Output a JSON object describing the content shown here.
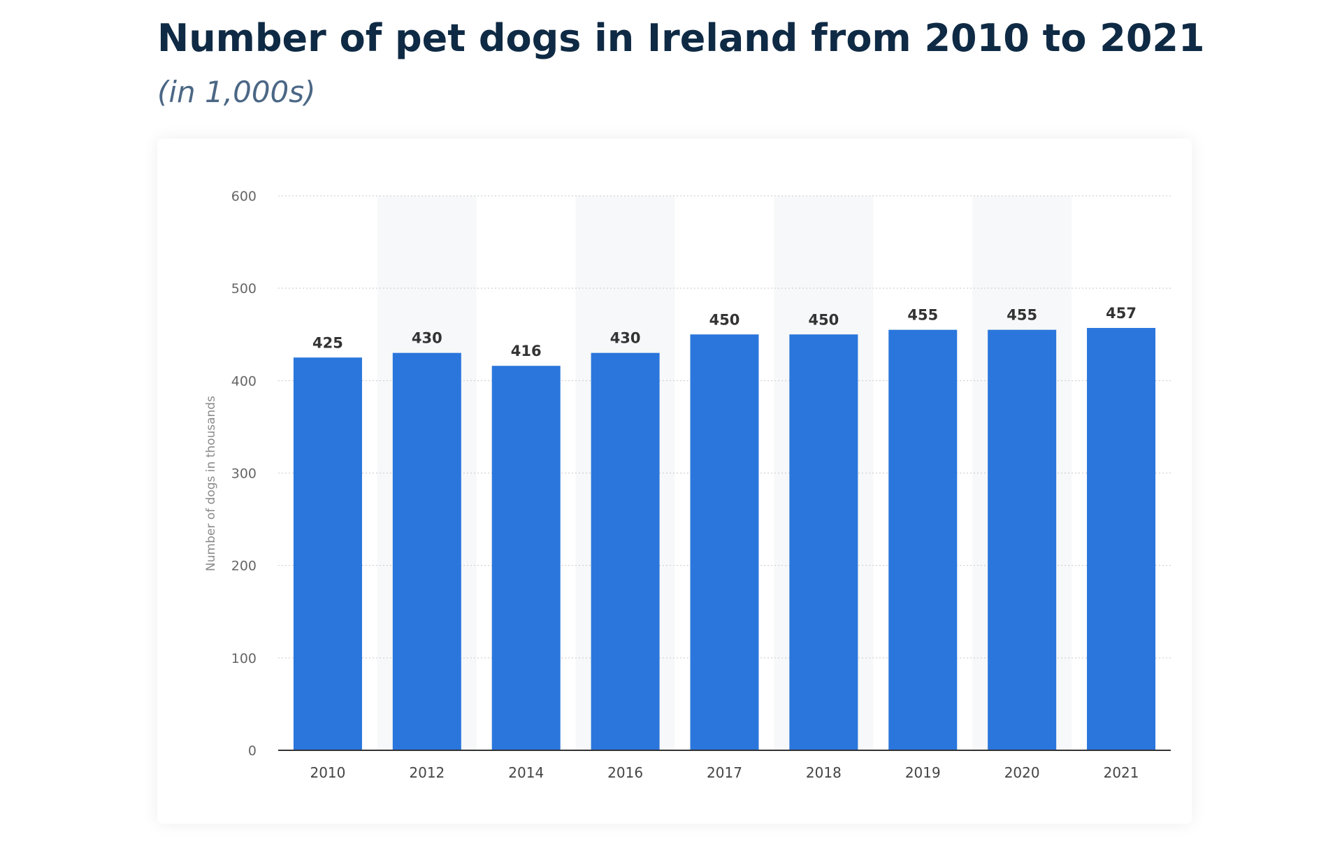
{
  "title": "Number of pet dogs in Ireland from 2010 to 2021",
  "subtitle": "(in 1,000s)",
  "colors": {
    "bar": "#2a76dc",
    "grid": "#c8c8c8",
    "axis": "#333333",
    "band": "#f7f8f9",
    "title": "#0f2a44",
    "subtitle": "#4b6785"
  },
  "chart_data": {
    "type": "bar",
    "categories": [
      "2010",
      "2012",
      "2014",
      "2016",
      "2017",
      "2018",
      "2019",
      "2020",
      "2021"
    ],
    "values": [
      425,
      430,
      416,
      430,
      450,
      450,
      455,
      455,
      457
    ],
    "data_labels": [
      "425",
      "430",
      "416",
      "430",
      "450",
      "450",
      "455",
      "455",
      "457"
    ],
    "title": "Number of pet dogs in Ireland from 2010 to 2021",
    "subtitle": "(in 1,000s)",
    "xlabel": "",
    "ylabel": "Number of dogs in thousands",
    "ylim": [
      0,
      600
    ],
    "yticks": [
      0,
      100,
      200,
      300,
      400,
      500,
      600
    ],
    "ytick_labels": [
      "0",
      "100",
      "200",
      "300",
      "400",
      "500",
      "600"
    ],
    "grid": true,
    "legend": "none"
  }
}
